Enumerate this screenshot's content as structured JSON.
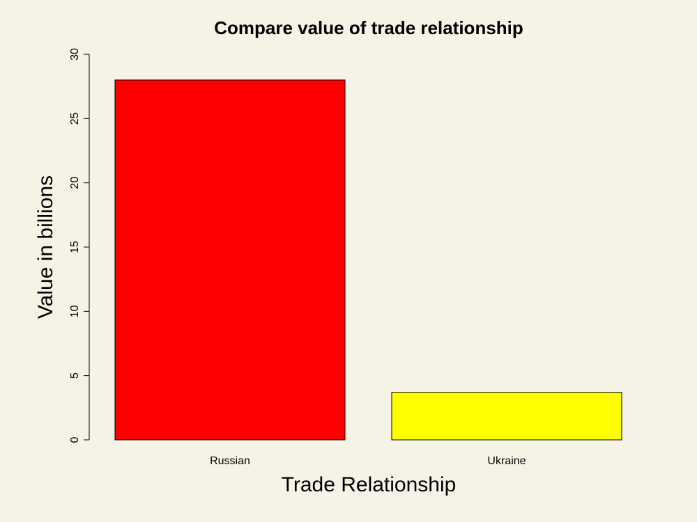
{
  "chart_data": {
    "type": "bar",
    "title": "Compare value of trade relationship",
    "xlabel": "Trade Relationship",
    "ylabel": "Value in billions",
    "categories": [
      "Russian",
      "Ukraine"
    ],
    "values": [
      28,
      3.7
    ],
    "colors": [
      "#ff0000",
      "#ffff00"
    ],
    "ylim": [
      0,
      30
    ],
    "yticks": [
      "0",
      "5",
      "10",
      "15",
      "20",
      "25",
      "30"
    ],
    "grid": false,
    "legend": "none"
  },
  "background_color": "#f5f3e6"
}
